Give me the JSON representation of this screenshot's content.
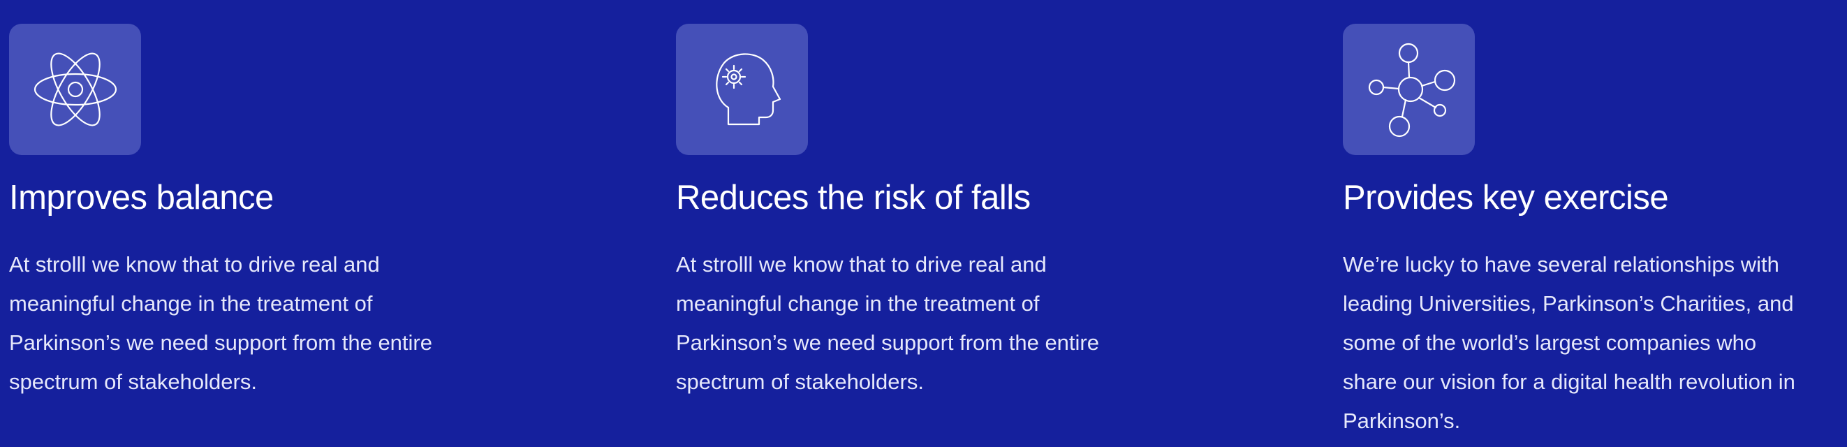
{
  "colors": {
    "background": "#15209d",
    "icon_tile": "#4550b8",
    "text": "#ffffff"
  },
  "features": [
    {
      "icon": "atom-icon",
      "title": "Improves balance",
      "text": "At strolll we know that to drive real and\nmeaningful change in the treatment of\nParkinson’s we need support from the entire\nspectrum of stakeholders."
    },
    {
      "icon": "head-gear-icon",
      "title": "Reduces the risk of falls",
      "text": "At strolll we know that to drive real and\nmeaningful change in the treatment of\nParkinson’s we need support from the entire\nspectrum of stakeholders."
    },
    {
      "icon": "network-icon",
      "title": "Provides key exercise",
      "text": "We’re lucky to have several relationships with\nleading Universities, Parkinson’s Charities, and\nsome of the world’s largest companies who\nshare our vision for a digital health revolution in\nParkinson’s."
    }
  ]
}
